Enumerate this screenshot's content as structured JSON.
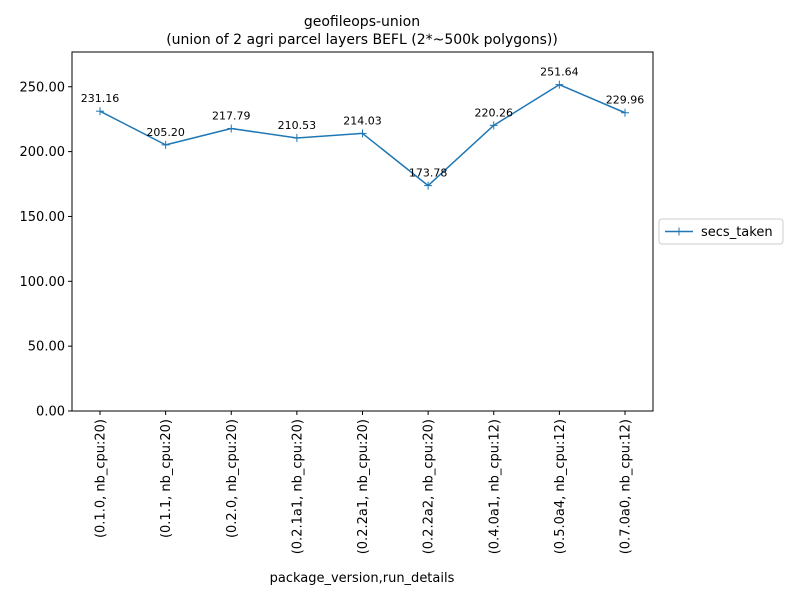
{
  "chart_data": {
    "type": "line",
    "title_line1": "geofileops-union",
    "title_line2": "(union of 2 agri parcel layers BEFL (2*~500k polygons))",
    "xlabel": "package_version,run_details",
    "ylabel": "",
    "categories": [
      "(0.1.0, nb_cpu:20)",
      "(0.1.1, nb_cpu:20)",
      "(0.2.0, nb_cpu:20)",
      "(0.2.1a1, nb_cpu:20)",
      "(0.2.2a1, nb_cpu:20)",
      "(0.2.2a2, nb_cpu:20)",
      "(0.4.0a1, nb_cpu:12)",
      "(0.5.0a4, nb_cpu:12)",
      "(0.7.0a0, nb_cpu:12)"
    ],
    "series": [
      {
        "name": "secs_taken",
        "values": [
          231.16,
          205.2,
          217.79,
          210.53,
          214.03,
          173.78,
          220.26,
          251.64,
          229.96
        ],
        "data_labels": [
          "231.16",
          "205.20",
          "217.79",
          "210.53",
          "214.03",
          "173.78",
          "220.26",
          "251.64",
          "229.96"
        ],
        "color": "#1f77b4",
        "marker": "+"
      }
    ],
    "yticks": [
      0,
      50,
      100,
      150,
      200,
      250
    ],
    "ytick_labels": [
      "0.00",
      "50.00",
      "100.00",
      "150.00",
      "200.00",
      "250.00"
    ],
    "ylim": [
      0,
      276.8
    ],
    "grid": false,
    "legend_placement": "right-outside"
  }
}
